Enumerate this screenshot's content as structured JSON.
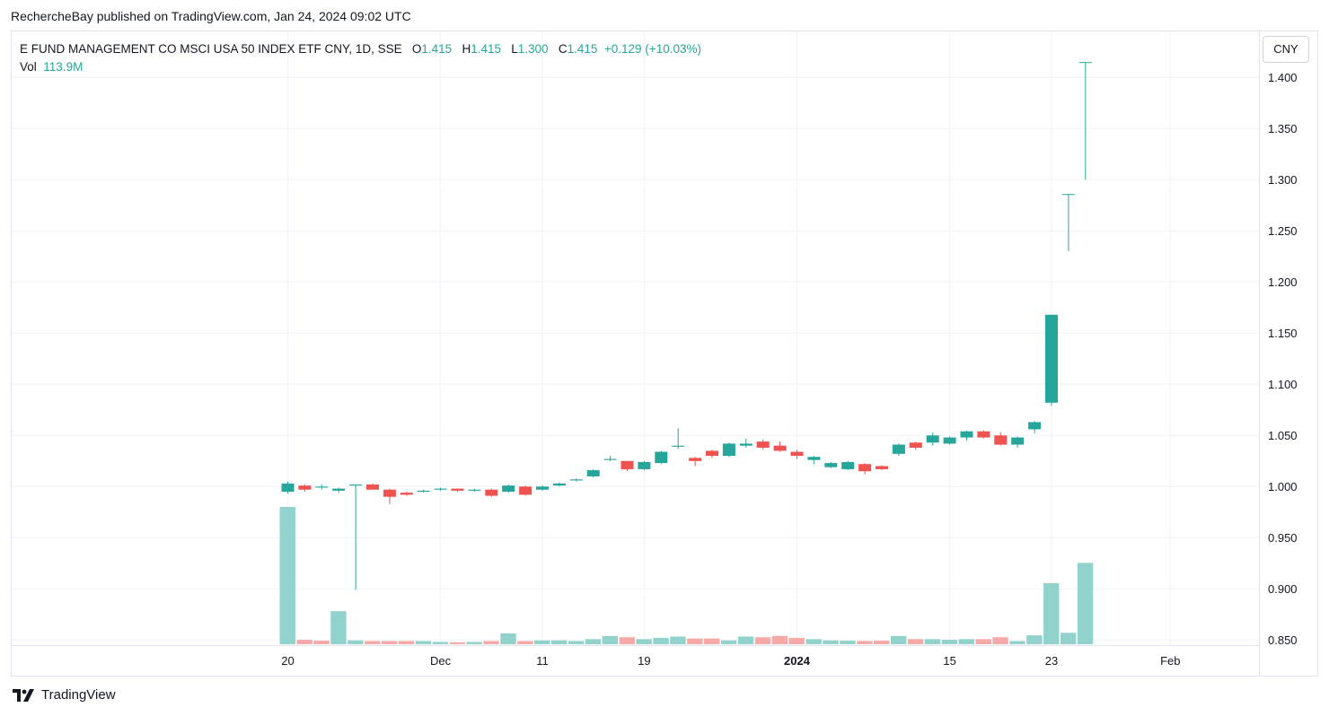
{
  "header": {
    "caption": "RechercheBay published on TradingView.com, Jan 24, 2024 09:02 UTC"
  },
  "legend": {
    "title": "E FUND MANAGEMENT CO MSCI USA 50 INDEX ETF CNY, 1D, SSE",
    "o_label": "O",
    "o": "1.415",
    "h_label": "H",
    "h": "1.415",
    "l_label": "L",
    "l": "1.300",
    "c_label": "C",
    "c": "1.415",
    "change": "+0.129 (+10.03%)",
    "vol_label": "Vol",
    "vol": "113.9M"
  },
  "currency_button": "CNY",
  "brand": {
    "name": "TradingView"
  },
  "colors": {
    "up": "#26a69a",
    "down": "#ef5350",
    "vol_up": "#92d2cc",
    "vol_down": "#f7a9a7",
    "grid": "#f0f3fa"
  },
  "chart_data": {
    "type": "candlestick",
    "title": "E FUND MANAGEMENT CO MSCI USA 50 INDEX ETF CNY, 1D, SSE",
    "ylim": [
      0.845,
      1.445
    ],
    "y_ticks": [
      "1.400",
      "1.350",
      "1.300",
      "1.250",
      "1.200",
      "1.150",
      "1.100",
      "1.050",
      "1.000",
      "0.950",
      "0.900",
      "0.850"
    ],
    "x_ticks": [
      {
        "label": "20",
        "bar": 0,
        "bold": false
      },
      {
        "label": "Dec",
        "bar": 9,
        "bold": false
      },
      {
        "label": "11",
        "bar": 15,
        "bold": false
      },
      {
        "label": "19",
        "bar": 21,
        "bold": false
      },
      {
        "label": "2024",
        "bar": 30,
        "bold": true
      },
      {
        "label": "15",
        "bar": 39,
        "bold": false
      },
      {
        "label": "23",
        "bar": 45,
        "bold": false
      },
      {
        "label": "Feb",
        "bar": 52,
        "bold": false
      }
    ],
    "grid": true,
    "legend_position": "top-left",
    "ohlc": [
      [
        0.995,
        1.005,
        0.993,
        1.003
      ],
      [
        1.001,
        1.002,
        0.995,
        0.997
      ],
      [
        0.999,
        1.002,
        0.997,
        1.0
      ],
      [
        0.996,
        0.999,
        0.994,
        0.998
      ],
      [
        1.001,
        1.002,
        0.899,
        1.002
      ],
      [
        1.002,
        1.003,
        0.997,
        0.997
      ],
      [
        0.997,
        0.998,
        0.983,
        0.99
      ],
      [
        0.994,
        0.995,
        0.991,
        0.992
      ],
      [
        0.995,
        0.997,
        0.994,
        0.996
      ],
      [
        0.997,
        0.999,
        0.996,
        0.998
      ],
      [
        0.998,
        0.998,
        0.995,
        0.996
      ],
      [
        0.996,
        0.998,
        0.995,
        0.997
      ],
      [
        0.997,
        0.998,
        0.99,
        0.991
      ],
      [
        0.995,
        1.002,
        0.994,
        1.001
      ],
      [
        1.0,
        1.001,
        0.991,
        0.992
      ],
      [
        0.997,
        1.001,
        0.996,
        1.0
      ],
      [
        1.001,
        1.004,
        1.0,
        1.003
      ],
      [
        1.006,
        1.008,
        1.005,
        1.007
      ],
      [
        1.01,
        1.017,
        1.009,
        1.016
      ],
      [
        1.026,
        1.03,
        1.025,
        1.027
      ],
      [
        1.025,
        1.025,
        1.015,
        1.017
      ],
      [
        1.017,
        1.025,
        1.016,
        1.024
      ],
      [
        1.023,
        1.035,
        1.022,
        1.034
      ],
      [
        1.039,
        1.057,
        1.037,
        1.04
      ],
      [
        1.028,
        1.029,
        1.02,
        1.025
      ],
      [
        1.035,
        1.036,
        1.028,
        1.03
      ],
      [
        1.03,
        1.043,
        1.029,
        1.042
      ],
      [
        1.04,
        1.047,
        1.038,
        1.042
      ],
      [
        1.044,
        1.046,
        1.036,
        1.038
      ],
      [
        1.04,
        1.044,
        1.034,
        1.035
      ],
      [
        1.034,
        1.036,
        1.027,
        1.03
      ],
      [
        1.026,
        1.03,
        1.022,
        1.029
      ],
      [
        1.019,
        1.024,
        1.018,
        1.023
      ],
      [
        1.017,
        1.025,
        1.016,
        1.024
      ],
      [
        1.022,
        1.023,
        1.012,
        1.015
      ],
      [
        1.02,
        1.021,
        1.016,
        1.017
      ],
      [
        1.032,
        1.042,
        1.03,
        1.041
      ],
      [
        1.043,
        1.044,
        1.036,
        1.038
      ],
      [
        1.043,
        1.053,
        1.04,
        1.05
      ],
      [
        1.042,
        1.049,
        1.041,
        1.048
      ],
      [
        1.048,
        1.055,
        1.045,
        1.054
      ],
      [
        1.054,
        1.055,
        1.047,
        1.048
      ],
      [
        1.05,
        1.053,
        1.04,
        1.041
      ],
      [
        1.041,
        1.049,
        1.038,
        1.048
      ],
      [
        1.056,
        1.064,
        1.052,
        1.063
      ],
      [
        1.082,
        1.168,
        1.079,
        1.168
      ],
      [
        1.286,
        1.286,
        1.23,
        1.286
      ],
      [
        1.415,
        1.415,
        1.3,
        1.415
      ]
    ],
    "volume_max": 120,
    "volume": [
      108,
      3.5,
      2.8,
      26,
      3,
      2.5,
      2.5,
      2.5,
      2.5,
      1.8,
      1.5,
      1.8,
      2.5,
      8.5,
      2.5,
      3,
      3,
      2.5,
      4,
      6.5,
      5.5,
      4,
      5,
      6,
      4.5,
      4.5,
      3,
      6,
      5.5,
      6.5,
      5,
      4,
      3,
      2.8,
      2.5,
      2.8,
      6.5,
      4,
      4,
      3.5,
      4,
      4,
      5.5,
      2.5,
      7,
      48,
      9,
      64
    ],
    "volume_up": [
      true,
      false,
      false,
      true,
      true,
      false,
      false,
      false,
      true,
      true,
      false,
      true,
      false,
      true,
      false,
      true,
      true,
      true,
      true,
      true,
      false,
      true,
      true,
      true,
      false,
      false,
      true,
      true,
      false,
      false,
      false,
      true,
      true,
      true,
      false,
      false,
      true,
      false,
      true,
      true,
      true,
      false,
      false,
      true,
      true,
      true,
      true,
      true
    ]
  }
}
